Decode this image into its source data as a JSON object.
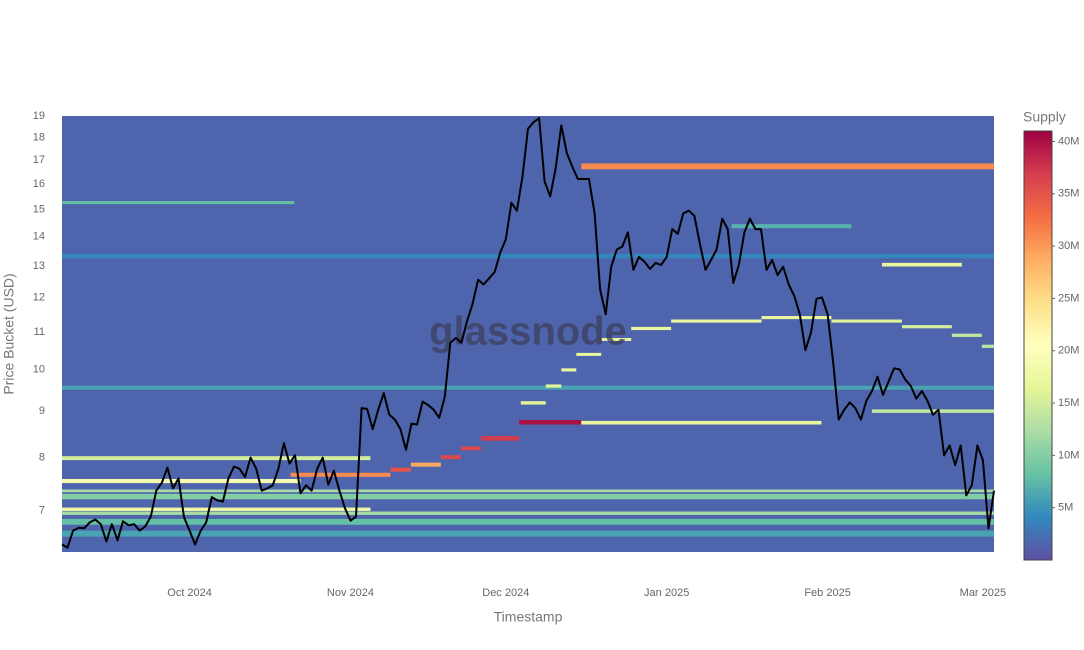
{
  "chart_data": {
    "type": "heatmap",
    "x_axis_label": "Timestamp",
    "y_axis_label": "Price Bucket (USD)",
    "colorbar_title": "Supply",
    "watermark": "glassnode",
    "xlim": [
      0,
      168
    ],
    "xticks": [
      {
        "value": 23,
        "label": "Oct 2024"
      },
      {
        "value": 52,
        "label": "Nov 2024"
      },
      {
        "value": 80,
        "label": "Dec 2024"
      },
      {
        "value": 109,
        "label": "Jan 2025"
      },
      {
        "value": 138,
        "label": "Feb 2025"
      },
      {
        "value": 166,
        "label": "Mar 2025"
      }
    ],
    "ylim": [
      6.3,
      19
    ],
    "yticks": [
      7,
      8,
      9,
      10,
      11,
      12,
      13,
      14,
      15,
      16,
      17,
      18,
      19
    ],
    "log_y": true,
    "zlim": [
      0,
      41
    ],
    "zticks": [
      {
        "value": 5,
        "label": "5M"
      },
      {
        "value": 10,
        "label": "10M"
      },
      {
        "value": 15,
        "label": "15M"
      },
      {
        "value": 20,
        "label": "20M"
      },
      {
        "value": 25,
        "label": "25M"
      },
      {
        "value": 30,
        "label": "30M"
      },
      {
        "value": 35,
        "label": "35M"
      },
      {
        "value": 40,
        "label": "40M"
      }
    ],
    "colorscale": [
      "#5e4fa2",
      "#3288bd",
      "#66c2a5",
      "#abdda4",
      "#e6f598",
      "#ffffbf",
      "#fee08b",
      "#fdae61",
      "#f46d43",
      "#d53e4f",
      "#9e0142"
    ],
    "cells": [
      {
        "x0": 0,
        "x1": 168,
        "y0": 6.3,
        "y1": 19,
        "z": 1.5
      },
      {
        "x0": 0,
        "x1": 168,
        "y0": 9.5,
        "y1": 9.6,
        "z": 6
      },
      {
        "x0": 0,
        "x1": 168,
        "y0": 13.25,
        "y1": 13.4,
        "z": 4
      },
      {
        "x0": 0,
        "x1": 168,
        "y0": 6.55,
        "y1": 6.65,
        "z": 6
      },
      {
        "x0": 0,
        "x1": 168,
        "y0": 6.75,
        "y1": 6.85,
        "z": 8
      },
      {
        "x0": 0,
        "x1": 168,
        "y0": 6.92,
        "y1": 6.98,
        "z": 12
      },
      {
        "x0": 0,
        "x1": 55.6,
        "y0": 6.99,
        "y1": 7.05,
        "z": 18
      },
      {
        "x0": 0,
        "x1": 168,
        "y0": 7.2,
        "y1": 7.3,
        "z": 10
      },
      {
        "x0": 0,
        "x1": 168,
        "y0": 7.33,
        "y1": 7.38,
        "z": 12
      },
      {
        "x0": 0,
        "x1": 43,
        "y0": 7.5,
        "y1": 7.58,
        "z": 19
      },
      {
        "x0": 0,
        "x1": 55.6,
        "y0": 7.95,
        "y1": 8.03,
        "z": 15
      },
      {
        "x0": 0,
        "x1": 41.9,
        "y0": 15.2,
        "y1": 15.32,
        "z": 8
      },
      {
        "x0": 41.2,
        "x1": 59.2,
        "y0": 7.62,
        "y1": 7.7,
        "z": 31
      },
      {
        "x0": 59.2,
        "x1": 62.9,
        "y0": 7.72,
        "y1": 7.8,
        "z": 35
      },
      {
        "x0": 62.9,
        "x1": 68.3,
        "y0": 7.82,
        "y1": 7.9,
        "z": 29
      },
      {
        "x0": 68.3,
        "x1": 71.9,
        "y0": 7.97,
        "y1": 8.05,
        "z": 36
      },
      {
        "x0": 71.9,
        "x1": 75.5,
        "y0": 8.15,
        "y1": 8.23,
        "z": 36
      },
      {
        "x0": 75.5,
        "x1": 82.4,
        "y0": 8.35,
        "y1": 8.45,
        "z": 37
      },
      {
        "x0": 82.4,
        "x1": 93.6,
        "y0": 8.7,
        "y1": 8.8,
        "z": 40
      },
      {
        "x0": 93.6,
        "x1": 136.9,
        "y0": 8.7,
        "y1": 8.78,
        "z": 17
      },
      {
        "x0": 82.7,
        "x1": 87.2,
        "y0": 9.15,
        "y1": 9.23,
        "z": 16
      },
      {
        "x0": 87.2,
        "x1": 90,
        "y0": 9.55,
        "y1": 9.63,
        "z": 16
      },
      {
        "x0": 90,
        "x1": 92.7,
        "y0": 9.95,
        "y1": 10.03,
        "z": 17
      },
      {
        "x0": 92.7,
        "x1": 97.2,
        "y0": 10.35,
        "y1": 10.43,
        "z": 17
      },
      {
        "x0": 97.2,
        "x1": 102.6,
        "y0": 10.75,
        "y1": 10.83,
        "z": 17
      },
      {
        "x0": 102.6,
        "x1": 109.8,
        "y0": 11.05,
        "y1": 11.14,
        "z": 17
      },
      {
        "x0": 109.8,
        "x1": 126.1,
        "y0": 11.26,
        "y1": 11.35,
        "z": 17
      },
      {
        "x0": 126.1,
        "x1": 138.7,
        "y0": 11.36,
        "y1": 11.45,
        "z": 17
      },
      {
        "x0": 138.7,
        "x1": 151.4,
        "y0": 11.26,
        "y1": 11.35,
        "z": 16
      },
      {
        "x0": 151.4,
        "x1": 160.4,
        "y0": 11.1,
        "y1": 11.19,
        "z": 15
      },
      {
        "x0": 160.4,
        "x1": 165.8,
        "y0": 10.86,
        "y1": 10.95,
        "z": 14
      },
      {
        "x0": 165.8,
        "x1": 168,
        "y0": 10.56,
        "y1": 10.65,
        "z": 13
      },
      {
        "x0": 93.6,
        "x1": 168,
        "y0": 16.6,
        "y1": 16.85,
        "z": 31
      },
      {
        "x0": 120.7,
        "x1": 142.3,
        "y0": 14.3,
        "y1": 14.45,
        "z": 7
      },
      {
        "x0": 147.8,
        "x1": 162.2,
        "y0": 12.98,
        "y1": 13.1,
        "z": 17
      },
      {
        "x0": 146,
        "x1": 168,
        "y0": 8.96,
        "y1": 9.04,
        "z": 14
      }
    ],
    "line": {
      "color": "#000000",
      "values": [
        6.42,
        6.37,
        6.65,
        6.7,
        6.69,
        6.79,
        6.84,
        6.76,
        6.47,
        6.76,
        6.49,
        6.81,
        6.74,
        6.76,
        6.65,
        6.72,
        6.89,
        7.36,
        7.51,
        7.8,
        7.4,
        7.59,
        6.88,
        6.65,
        6.42,
        6.65,
        6.79,
        7.24,
        7.18,
        7.16,
        7.59,
        7.82,
        7.78,
        7.62,
        8.0,
        7.78,
        7.36,
        7.4,
        7.46,
        7.78,
        8.3,
        7.88,
        8.05,
        7.31,
        7.46,
        7.36,
        7.78,
        8.0,
        7.47,
        7.74,
        7.36,
        7.04,
        6.82,
        6.89,
        9.07,
        9.05,
        8.6,
        9.03,
        9.42,
        8.92,
        8.81,
        8.6,
        8.16,
        8.72,
        8.7,
        9.22,
        9.14,
        9.03,
        8.85,
        9.33,
        10.7,
        10.83,
        10.7,
        11.3,
        11.8,
        12.55,
        12.4,
        12.6,
        12.8,
        13.45,
        13.9,
        15.25,
        14.95,
        16.3,
        18.4,
        18.7,
        18.9,
        16.1,
        15.5,
        16.65,
        18.55,
        17.3,
        16.7,
        16.2,
        16.2,
        16.2,
        14.85,
        12.25,
        11.5,
        12.97,
        13.55,
        13.65,
        14.15,
        12.87,
        13.3,
        13.14,
        12.9,
        13.1,
        13.03,
        13.3,
        14.27,
        14.1,
        14.85,
        14.95,
        14.75,
        13.73,
        12.87,
        13.2,
        13.55,
        14.65,
        14.27,
        12.45,
        13.03,
        14.15,
        14.65,
        14.27,
        14.27,
        12.87,
        13.2,
        12.7,
        12.97,
        12.4,
        12.05,
        11.5,
        10.5,
        10.97,
        11.96,
        12.0,
        11.5,
        10.2,
        8.81,
        9.03,
        9.2,
        9.07,
        8.81,
        9.24,
        9.47,
        9.82,
        9.38,
        9.7,
        10.03,
        10.0,
        9.75,
        9.59,
        9.29,
        9.47,
        9.24,
        8.92,
        9.03,
        8.05,
        8.25,
        7.85,
        8.25,
        7.27,
        7.46,
        8.25,
        7.95,
        6.69,
        7.36
      ]
    }
  }
}
